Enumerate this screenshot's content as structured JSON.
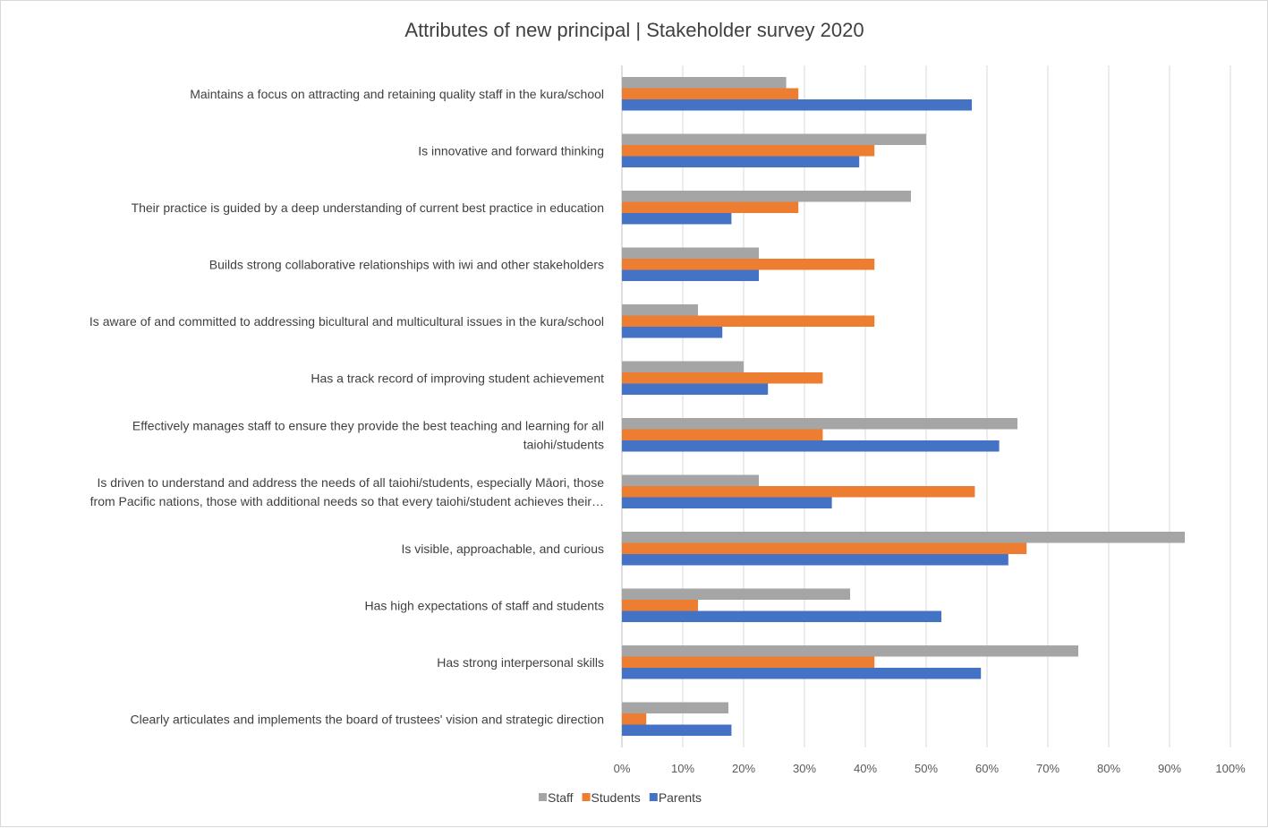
{
  "chart_data": {
    "type": "bar",
    "orientation": "horizontal",
    "title": "Attributes of new principal | Stakeholder survey 2020",
    "categories": [
      [
        "Maintains a focus on attracting and retaining quality staff in the kura/school"
      ],
      [
        "Is innovative and forward thinking"
      ],
      [
        "Their practice is guided by a deep understanding of current best practice in education"
      ],
      [
        "Builds strong collaborative relationships with iwi and other stakeholders"
      ],
      [
        "Is aware of and committed to addressing bicultural and multicultural issues in the kura/school"
      ],
      [
        "Has a track record of improving student achievement"
      ],
      [
        "Effectively manages staff to ensure they provide the best teaching and learning for all",
        "taiohi/students"
      ],
      [
        "Is driven to understand and address the needs of all taiohi/students, especially Māori, those",
        "from Pacific nations, those with additional needs so that every taiohi/student achieves their…"
      ],
      [
        "Is visible, approachable, and curious"
      ],
      [
        "Has high expectations of staff and students"
      ],
      [
        "Has strong interpersonal skills"
      ],
      [
        "Clearly articulates and implements the board of trustees' vision and strategic direction"
      ]
    ],
    "series": [
      {
        "name": "Staff",
        "color": "#a5a5a5",
        "values": [
          27,
          50,
          47.5,
          22.5,
          12.5,
          20,
          65,
          22.5,
          92.5,
          37.5,
          75,
          17.5
        ]
      },
      {
        "name": "Students",
        "color": "#ed7d31",
        "values": [
          29,
          41.5,
          29,
          41.5,
          41.5,
          33,
          33,
          58,
          66.5,
          12.5,
          41.5,
          4
        ]
      },
      {
        "name": "Parents",
        "color": "#4472c4",
        "values": [
          57.5,
          39,
          18,
          22.5,
          16.5,
          24,
          62,
          34.5,
          63.5,
          52.5,
          59,
          18
        ]
      }
    ],
    "xlim": [
      0,
      100
    ],
    "xticks": [
      "0%",
      "10%",
      "20%",
      "30%",
      "40%",
      "50%",
      "60%",
      "70%",
      "80%",
      "90%",
      "100%"
    ],
    "grid": true,
    "legend_position": "bottom",
    "gridline_color": "#d9d9d9"
  }
}
